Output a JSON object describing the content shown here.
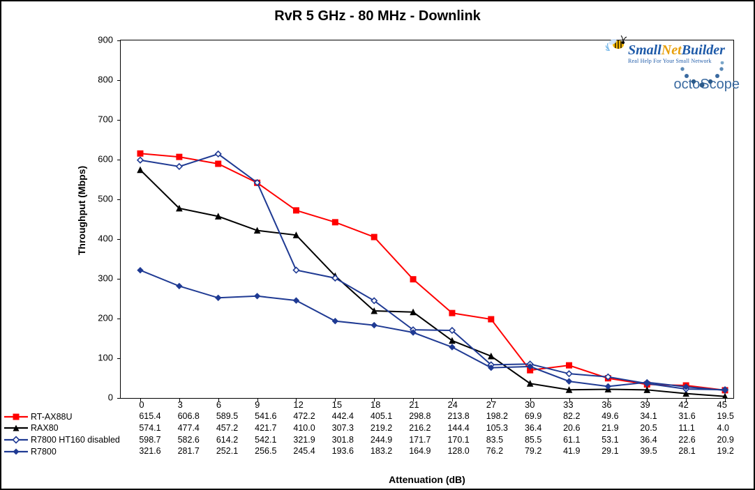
{
  "chart": {
    "title": "RvR 5 GHz - 80 MHz - Downlink",
    "type": "line",
    "background_color": "#ffffff",
    "border_color": "#000000",
    "title_fontsize": 20,
    "title_fontweight": "bold",
    "ylabel": "Throughput (Mbps)",
    "xlabel": "Attenuation (dB)",
    "label_fontsize": 14,
    "label_fontweight": "bold",
    "tick_fontsize": 13,
    "ylim": [
      0,
      900
    ],
    "ytick_step": 100,
    "yticks": [
      0,
      100,
      200,
      300,
      400,
      500,
      600,
      700,
      800,
      900
    ],
    "x_categories": [
      0,
      3,
      6,
      9,
      12,
      15,
      18,
      21,
      24,
      27,
      30,
      33,
      36,
      39,
      42,
      45
    ],
    "grid": false,
    "line_width": 2,
    "marker_size": 8,
    "series": [
      {
        "id": "rt-ax88u",
        "label": "RT-AX88U",
        "color": "#ff0000",
        "marker": "square-filled",
        "values": [
          615.4,
          606.8,
          589.5,
          541.6,
          472.2,
          442.4,
          405.1,
          298.8,
          213.8,
          198.2,
          69.9,
          82.2,
          49.6,
          34.1,
          31.6,
          19.5
        ]
      },
      {
        "id": "rax80",
        "label": "RAX80",
        "color": "#000000",
        "marker": "triangle-filled",
        "values": [
          574.1,
          477.4,
          457.2,
          421.7,
          410.0,
          307.3,
          219.2,
          216.2,
          144.4,
          105.3,
          36.4,
          20.6,
          21.9,
          20.5,
          11.1,
          4.0
        ]
      },
      {
        "id": "r7800-ht160-disabled",
        "label": "R7800 HT160 disabled",
        "color": "#1f3a93",
        "marker": "diamond-open",
        "values": [
          598.7,
          582.6,
          614.2,
          542.1,
          321.9,
          301.8,
          244.9,
          171.7,
          170.1,
          83.5,
          85.5,
          61.1,
          53.1,
          36.4,
          22.6,
          20.9
        ]
      },
      {
        "id": "r7800",
        "label": "R7800",
        "color": "#1f3a93",
        "marker": "diamond-filled",
        "values": [
          321.6,
          281.7,
          252.1,
          256.5,
          245.4,
          193.6,
          183.2,
          164.9,
          128.0,
          76.2,
          79.2,
          41.9,
          29.1,
          39.5,
          28.1,
          19.2
        ]
      }
    ]
  },
  "logos": {
    "snb": {
      "part1": "Small",
      "part2": "Net",
      "part3": "Builder",
      "tagline": "Real Help For Your Small Network",
      "color_blue": "#1e5aa8",
      "color_orange": "#e8a00c"
    },
    "octoscope": {
      "text": "octoScope",
      "color": "#3a6aa0",
      "dot_color_dark": "#2b5a8a",
      "dot_color_light": "#7aa6c9"
    }
  }
}
